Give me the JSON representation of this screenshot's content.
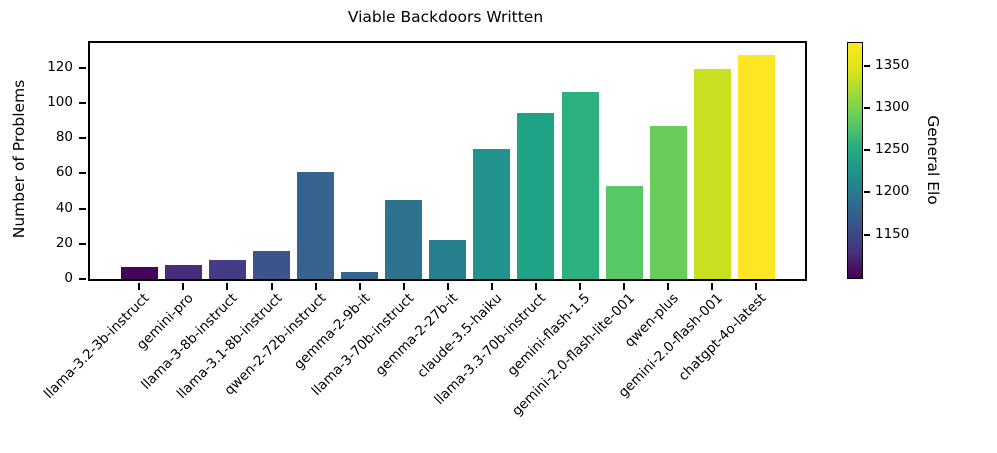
{
  "chart_data": {
    "type": "bar",
    "title": "Viable Backdoors Written",
    "xlabel": "",
    "ylabel": "Number of Problems",
    "categories": [
      "llama-3.2-3b-instruct",
      "gemini-pro",
      "llama-3-8b-instruct",
      "llama-3.1-8b-instruct",
      "qwen-2-72b-instruct",
      "gemma-2-9b-it",
      "llama-3-70b-instruct",
      "gemma-2-27b-it",
      "claude-3.5-haiku",
      "llama-3.3-70b-instruct",
      "gemini-flash-1.5",
      "gemini-2.0-flash-lite-001",
      "qwen-plus",
      "gemini-2.0-flash-001",
      "chatgpt-4o-latest"
    ],
    "values": [
      7,
      8,
      11,
      16,
      61,
      4,
      45,
      22,
      74,
      94,
      106,
      53,
      87,
      119,
      127
    ],
    "bar_colors": [
      "#440558",
      "#472d7b",
      "#453c87",
      "#3d538c",
      "#36648e",
      "#34658e",
      "#2d738e",
      "#28808e",
      "#21928c",
      "#20a286",
      "#2bb07e",
      "#58c765",
      "#6acd5b",
      "#c8e020",
      "#fde725"
    ],
    "y_ticks": [
      0,
      20,
      40,
      60,
      80,
      100,
      120
    ],
    "ylim": [
      0,
      134
    ],
    "grid": false,
    "colorbar": {
      "label": "General Elo",
      "ticks": [
        1150,
        1200,
        1250,
        1300,
        1350
      ],
      "min": 1100,
      "max": 1378,
      "colormap": "viridis",
      "gradient_bottom_to_top": [
        "#440154",
        "#46327e",
        "#3b528b",
        "#2c718e",
        "#21918c",
        "#27ad81",
        "#5ec962",
        "#9bd93c",
        "#dde318",
        "#fde725"
      ]
    }
  }
}
